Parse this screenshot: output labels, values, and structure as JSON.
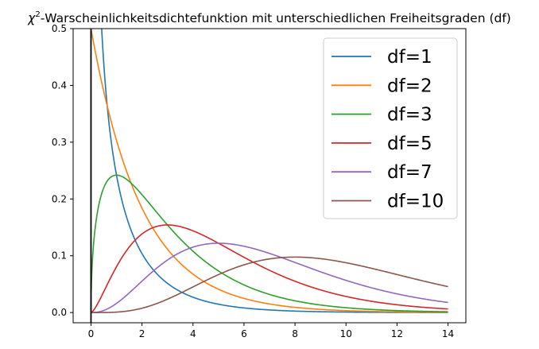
{
  "chart_data": {
    "type": "line",
    "title_prefix": "χ",
    "title_sup": "2",
    "title_rest": "-Warscheinlichkeitsdichtefunktion mit unterschiedlichen Freiheitsgraden (df)",
    "xlim": [
      -0.7,
      14.7
    ],
    "ylim": [
      -0.018,
      0.5
    ],
    "x_range": [
      0,
      14
    ],
    "xticks": [
      0,
      2,
      4,
      6,
      8,
      10,
      12,
      14
    ],
    "yticks": [
      0.0,
      0.1,
      0.2,
      0.3,
      0.4,
      0.5
    ],
    "ytick_labels": [
      "0.0",
      "0.1",
      "0.2",
      "0.3",
      "0.4",
      "0.5"
    ],
    "vline_x": 0,
    "vline_color": "#000000",
    "grid": false,
    "legend_position": "top-right",
    "series": [
      {
        "name": "df=1",
        "df": 1,
        "color": "#1f77b4"
      },
      {
        "name": "df=2",
        "df": 2,
        "color": "#ff7f0e"
      },
      {
        "name": "df=3",
        "df": 3,
        "color": "#2ca02c"
      },
      {
        "name": "df=5",
        "df": 5,
        "color": "#d62728"
      },
      {
        "name": "df=7",
        "df": 7,
        "color": "#9467bd"
      },
      {
        "name": "df=10",
        "df": 10,
        "color": "#8c564b"
      }
    ]
  }
}
